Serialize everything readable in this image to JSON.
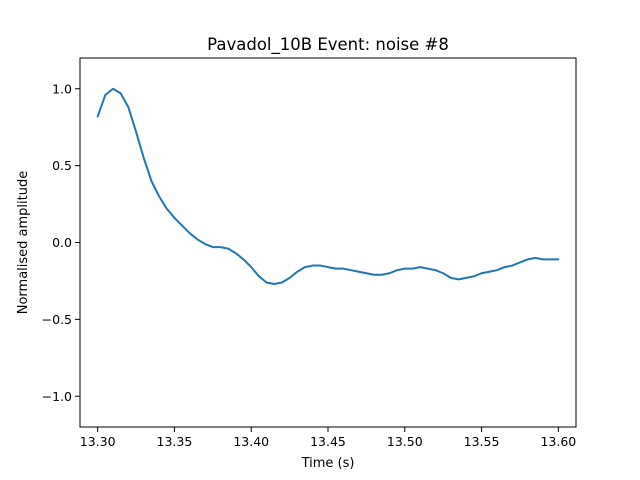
{
  "chart_data": {
    "type": "line",
    "title": "Pavadol_10B Event: noise #8",
    "xlabel": "Time (s)",
    "ylabel": "Normalised amplitude",
    "xlim": [
      13.2885,
      13.6115
    ],
    "ylim": [
      -1.2,
      1.2
    ],
    "x_ticks": [
      13.3,
      13.35,
      13.4,
      13.45,
      13.5,
      13.55,
      13.6
    ],
    "x_tick_labels": [
      "13.30",
      "13.35",
      "13.40",
      "13.45",
      "13.50",
      "13.55",
      "13.60"
    ],
    "y_ticks": [
      -1.0,
      -0.5,
      0.0,
      0.5,
      1.0
    ],
    "y_tick_labels": [
      "−1.0",
      "−0.5",
      "0.0",
      "0.5",
      "1.0"
    ],
    "grid": false,
    "series": [
      {
        "color": "#1f77b4",
        "x": [
          13.3,
          13.305,
          13.31,
          13.315,
          13.32,
          13.325,
          13.33,
          13.335,
          13.34,
          13.345,
          13.35,
          13.355,
          13.36,
          13.365,
          13.37,
          13.375,
          13.38,
          13.385,
          13.39,
          13.395,
          13.4,
          13.405,
          13.41,
          13.415,
          13.42,
          13.425,
          13.43,
          13.435,
          13.44,
          13.445,
          13.45,
          13.455,
          13.46,
          13.465,
          13.47,
          13.475,
          13.48,
          13.485,
          13.49,
          13.495,
          13.5,
          13.505,
          13.51,
          13.515,
          13.52,
          13.525,
          13.53,
          13.535,
          13.54,
          13.545,
          13.55,
          13.555,
          13.56,
          13.565,
          13.57,
          13.575,
          13.58,
          13.585,
          13.59,
          13.595,
          13.6
        ],
        "y": [
          0.82,
          0.96,
          1.0,
          0.97,
          0.88,
          0.72,
          0.55,
          0.4,
          0.3,
          0.22,
          0.16,
          0.11,
          0.06,
          0.02,
          -0.01,
          -0.03,
          -0.03,
          -0.04,
          -0.07,
          -0.11,
          -0.16,
          -0.22,
          -0.26,
          -0.27,
          -0.26,
          -0.23,
          -0.19,
          -0.16,
          -0.15,
          -0.15,
          -0.16,
          -0.17,
          -0.17,
          -0.18,
          -0.19,
          -0.2,
          -0.21,
          -0.21,
          -0.2,
          -0.18,
          -0.17,
          -0.17,
          -0.16,
          -0.17,
          -0.18,
          -0.2,
          -0.23,
          -0.24,
          -0.23,
          -0.22,
          -0.2,
          -0.19,
          -0.18,
          -0.16,
          -0.15,
          -0.13,
          -0.11,
          -0.1,
          -0.11,
          -0.11,
          -0.11
        ]
      }
    ]
  }
}
